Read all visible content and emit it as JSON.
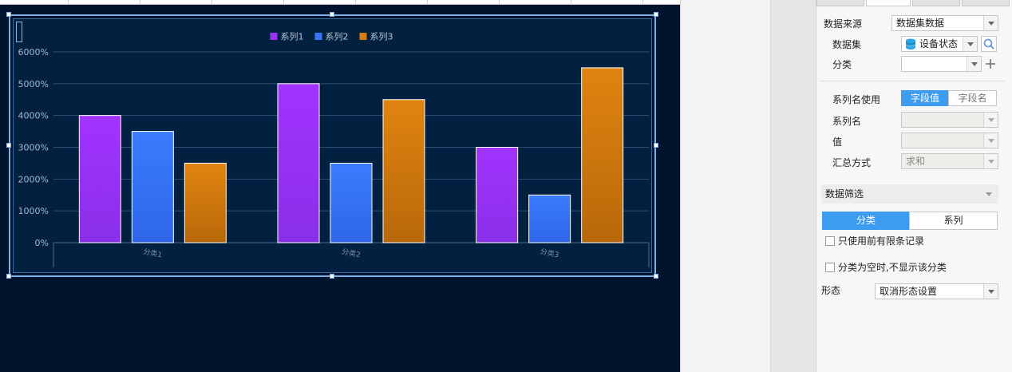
{
  "panel": {
    "data_source_label": "数据来源",
    "data_source_value": "数据集数据",
    "dataset_label": "数据集",
    "dataset_value": "设备状态",
    "category_label": "分类",
    "category_value": "",
    "series_name_use_label": "系列名使用",
    "series_name_use_options": [
      "字段值",
      "字段名"
    ],
    "series_name_label": "系列名",
    "series_name_value": "",
    "value_label": "值",
    "value_value": "",
    "summary_label": "汇总方式",
    "summary_value": "求和",
    "filter_section": "数据筛选",
    "filter_tabs": [
      "分类",
      "系列"
    ],
    "limit_records_label": "只使用前有限条记录",
    "hide_empty_label": "分类为空时,不显示该分类",
    "form_label": "形态",
    "form_value": "取消形态设置"
  },
  "colors": {
    "accent": "#3d9bf0",
    "canvas_bg": "#00142e",
    "chart_bg": "#02203f"
  },
  "chart_data": {
    "type": "bar",
    "categories": [
      "分类1",
      "分类2",
      "分类3"
    ],
    "series": [
      {
        "name": "系列1",
        "values": [
          4000,
          5000,
          3000
        ],
        "color": "#9a32f5"
      },
      {
        "name": "系列2",
        "values": [
          3500,
          2500,
          1500
        ],
        "color": "#3777f7"
      },
      {
        "name": "系列3",
        "values": [
          2500,
          4500,
          5500
        ],
        "color": "#d27d0c"
      }
    ],
    "y_ticks": [
      "0%",
      "1000%",
      "2000%",
      "3000%",
      "4000%",
      "5000%",
      "6000%"
    ],
    "ylim": [
      0,
      6000
    ],
    "grid": true,
    "legend": "top-center"
  }
}
